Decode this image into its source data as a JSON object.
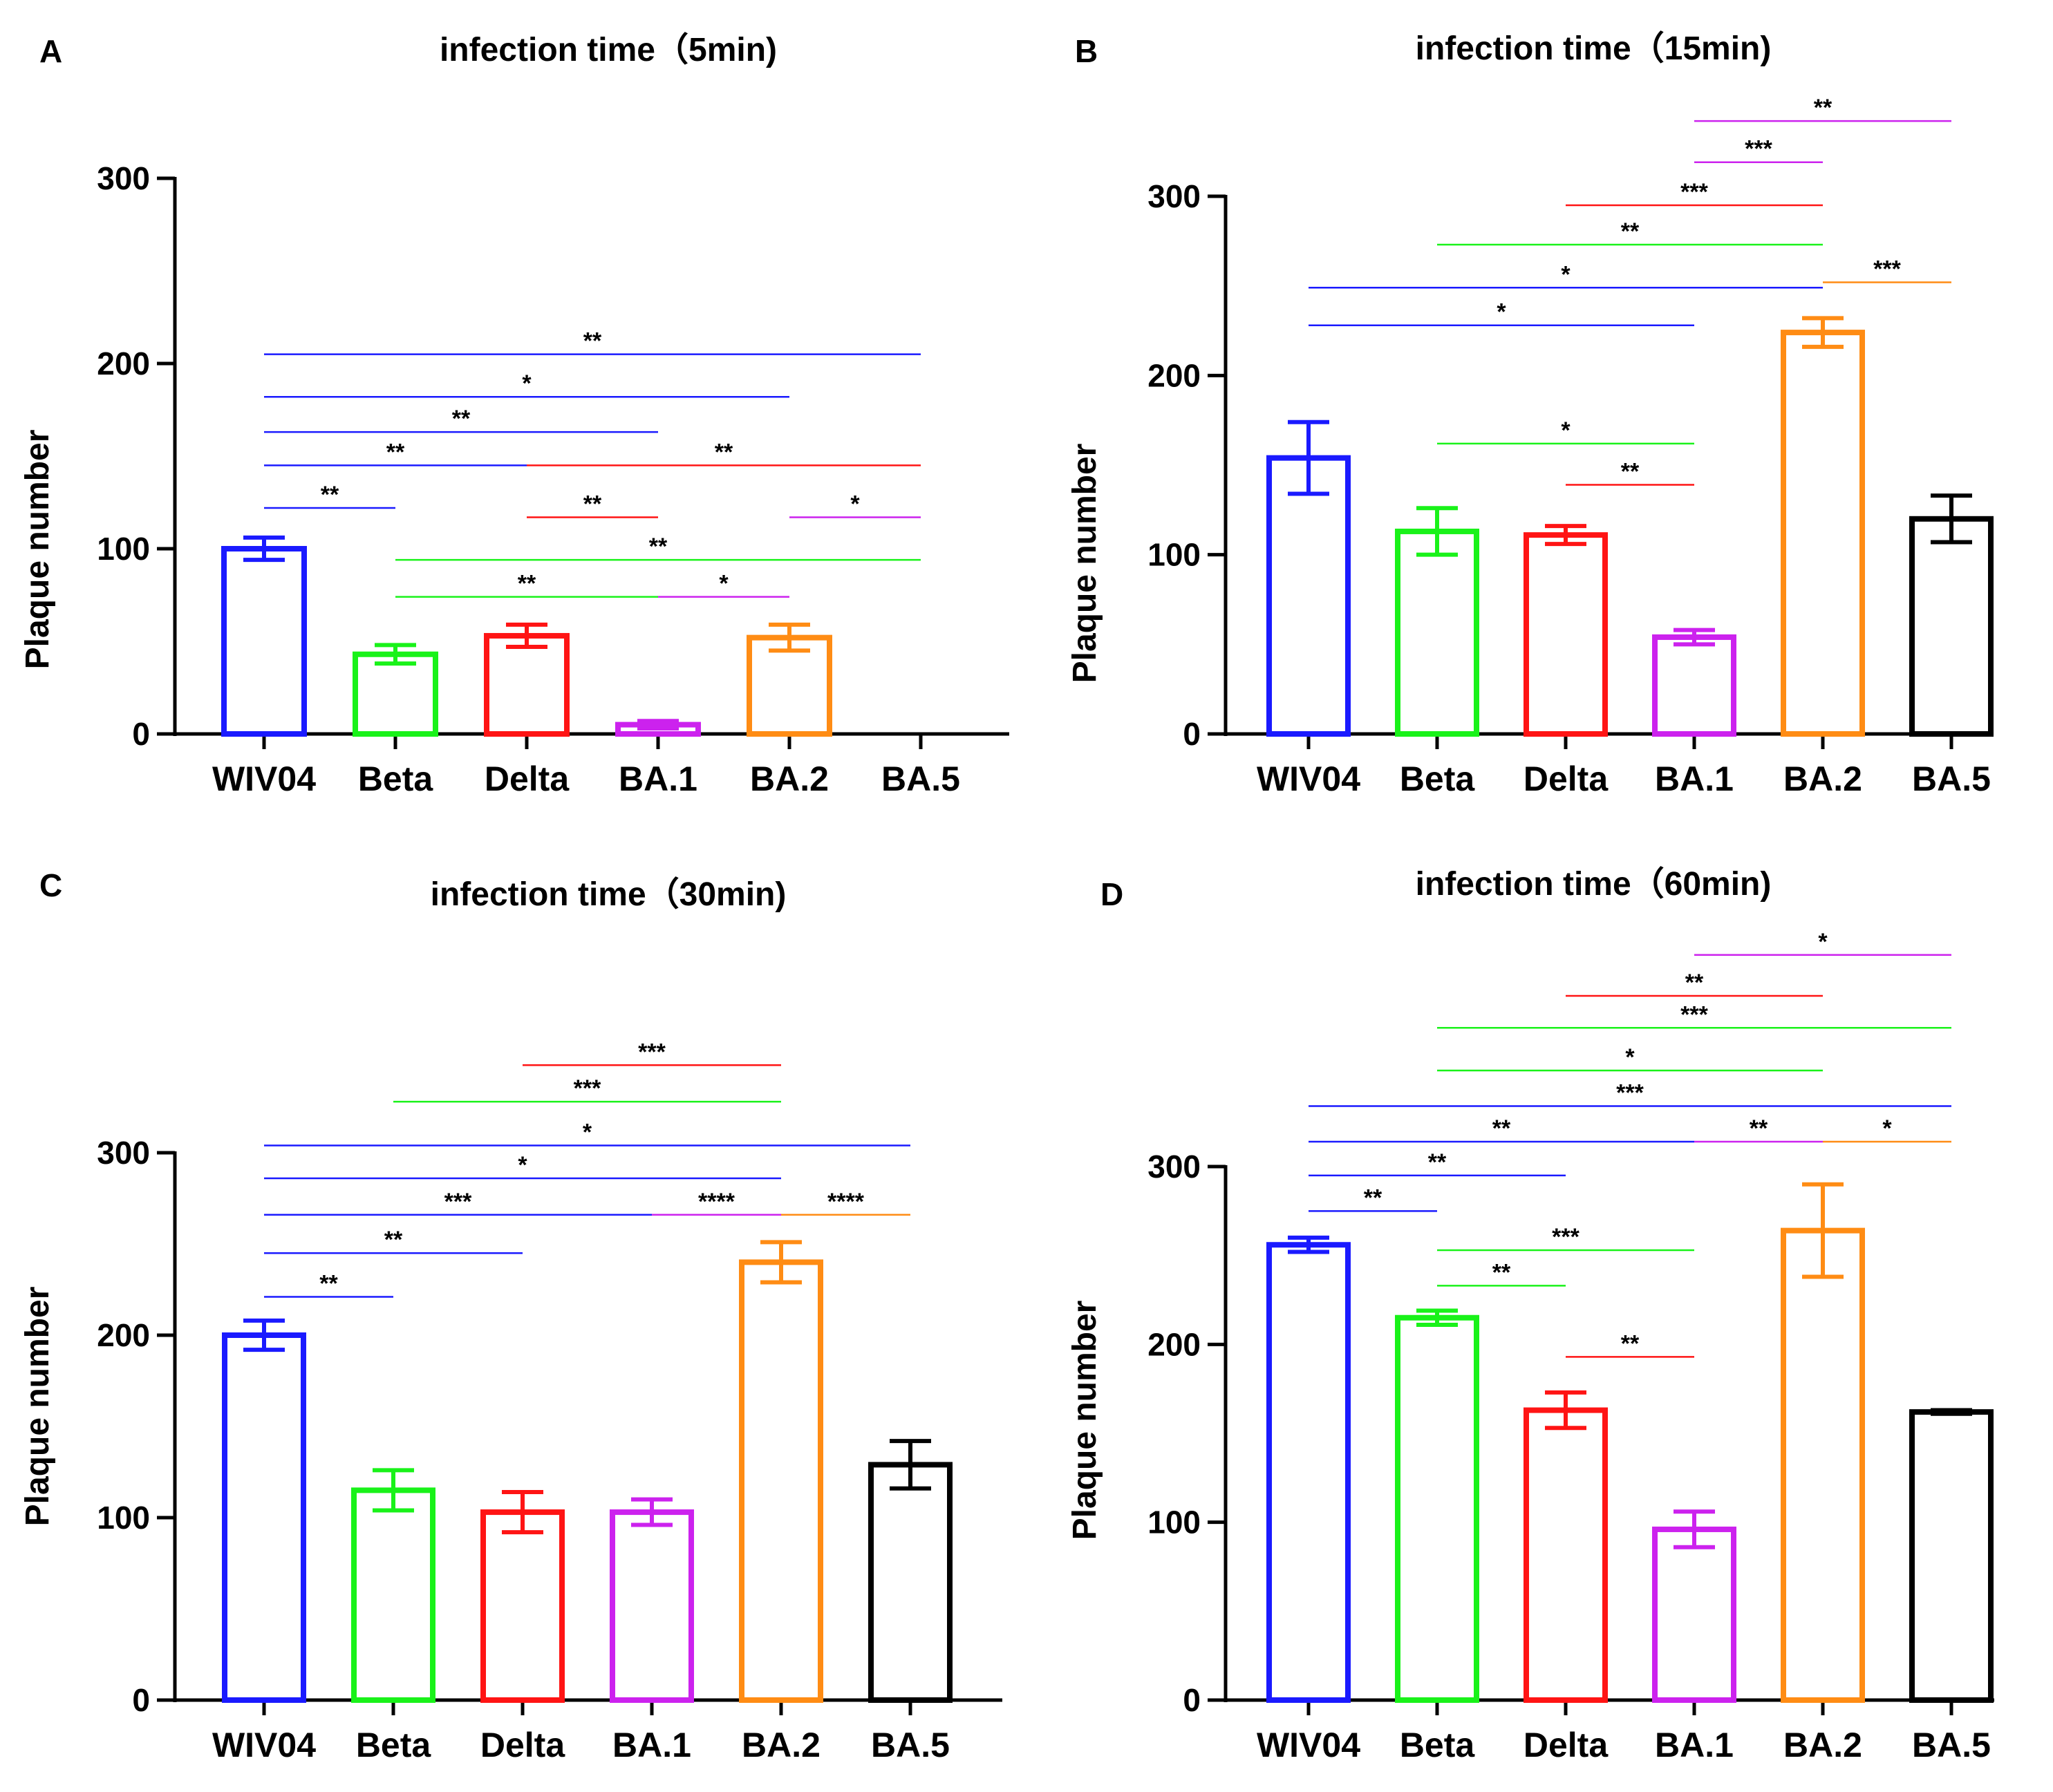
{
  "colors": {
    "WIV04": "#1a1aff",
    "Beta": "#19f219",
    "Delta": "#ff1414",
    "BA.1": "#cc22ee",
    "BA.2": "#ff8c14",
    "BA.5": "#000000"
  },
  "chart_data": [
    {
      "panel": "A",
      "type": "bar",
      "title": "infection time（5min)",
      "ylabel": "Plaque number",
      "xlabel": "",
      "ylim": [
        0,
        300
      ],
      "yticks": [
        "0",
        "100",
        "200",
        "300"
      ],
      "categories": [
        "WIV04",
        "Beta",
        "Delta",
        "BA.1",
        "BA.2",
        "BA.5"
      ],
      "values": [
        100,
        43,
        53,
        5,
        52,
        0
      ],
      "errors": [
        6,
        5,
        6,
        2,
        7,
        0
      ],
      "comparisons": [
        {
          "from": "WIV04",
          "to": "Beta",
          "label": "**",
          "color": "WIV04",
          "level": 122
        },
        {
          "from": "WIV04",
          "to": "Delta",
          "label": "**",
          "color": "WIV04",
          "level": 145
        },
        {
          "from": "WIV04",
          "to": "BA.1",
          "label": "**",
          "color": "WIV04",
          "level": 163
        },
        {
          "from": "WIV04",
          "to": "BA.2",
          "label": "*",
          "color": "WIV04",
          "level": 182
        },
        {
          "from": "WIV04",
          "to": "BA.5",
          "label": "**",
          "color": "WIV04",
          "level": 205
        },
        {
          "from": "Beta",
          "to": "BA.1",
          "label": "**",
          "color": "Beta",
          "level": 74
        },
        {
          "from": "Beta",
          "to": "BA.5",
          "label": "**",
          "color": "Beta",
          "level": 94
        },
        {
          "from": "Delta",
          "to": "BA.1",
          "label": "**",
          "color": "Delta",
          "level": 117
        },
        {
          "from": "Delta",
          "to": "BA.5",
          "label": "**",
          "color": "Delta",
          "level": 145
        },
        {
          "from": "BA.1",
          "to": "BA.2",
          "label": "*",
          "color": "BA.1",
          "level": 74
        },
        {
          "from": "BA.2",
          "to": "BA.5",
          "label": "*",
          "color": "BA.1",
          "level": 117
        }
      ]
    },
    {
      "panel": "B",
      "type": "bar",
      "title": "infection time（15min)",
      "ylabel": "Plaque number",
      "xlabel": "",
      "ylim": [
        0,
        300
      ],
      "yticks": [
        "0",
        "100",
        "200",
        "300"
      ],
      "categories": [
        "WIV04",
        "Beta",
        "Delta",
        "BA.1",
        "BA.2",
        "BA.5"
      ],
      "values": [
        154,
        113,
        111,
        54,
        224,
        120
      ],
      "errors": [
        20,
        13,
        5,
        4,
        8,
        13
      ],
      "comparisons": [
        {
          "from": "WIV04",
          "to": "BA.1",
          "label": "*",
          "color": "WIV04",
          "level": 228
        },
        {
          "from": "WIV04",
          "to": "BA.2",
          "label": "*",
          "color": "WIV04",
          "level": 249
        },
        {
          "from": "Beta",
          "to": "BA.1",
          "label": "*",
          "color": "Beta",
          "level": 162
        },
        {
          "from": "Beta",
          "to": "BA.2",
          "label": "**",
          "color": "Beta",
          "level": 273
        },
        {
          "from": "Delta",
          "to": "BA.1",
          "label": "**",
          "color": "Delta",
          "level": 139
        },
        {
          "from": "Delta",
          "to": "BA.2",
          "label": "***",
          "color": "Delta",
          "level": 295
        },
        {
          "from": "BA.1",
          "to": "BA.2",
          "label": "***",
          "color": "BA.1",
          "level": 319
        },
        {
          "from": "BA.1",
          "to": "BA.5",
          "label": "**",
          "color": "BA.1",
          "level": 342
        },
        {
          "from": "BA.2",
          "to": "BA.5",
          "label": "***",
          "color": "BA.2",
          "level": 252
        }
      ]
    },
    {
      "panel": "C",
      "type": "bar",
      "title": "infection time（30min)",
      "ylabel": "Plaque number",
      "xlabel": "",
      "ylim": [
        0,
        300
      ],
      "yticks": [
        "0",
        "100",
        "200",
        "300"
      ],
      "categories": [
        "WIV04",
        "Beta",
        "Delta",
        "BA.1",
        "BA.2",
        "BA.5"
      ],
      "values": [
        200,
        115,
        103,
        103,
        240,
        129
      ],
      "errors": [
        8,
        11,
        11,
        7,
        11,
        13
      ],
      "comparisons": [
        {
          "from": "WIV04",
          "to": "Beta",
          "label": "**",
          "color": "WIV04",
          "level": 221
        },
        {
          "from": "WIV04",
          "to": "Delta",
          "label": "**",
          "color": "WIV04",
          "level": 245
        },
        {
          "from": "WIV04",
          "to": "BA.1",
          "label": "***",
          "color": "WIV04",
          "level": 266
        },
        {
          "from": "WIV04",
          "to": "BA.2",
          "label": "*",
          "color": "WIV04",
          "level": 286
        },
        {
          "from": "WIV04",
          "to": "BA.5",
          "label": "*",
          "color": "WIV04",
          "level": 304
        },
        {
          "from": "Beta",
          "to": "BA.2",
          "label": "***",
          "color": "Beta",
          "level": 328
        },
        {
          "from": "Delta",
          "to": "BA.2",
          "label": "***",
          "color": "Delta",
          "level": 348
        },
        {
          "from": "BA.1",
          "to": "BA.2",
          "label": "****",
          "color": "BA.1",
          "level": 266
        },
        {
          "from": "BA.2",
          "to": "BA.5",
          "label": "****",
          "color": "BA.2",
          "level": 266
        }
      ]
    },
    {
      "panel": "D",
      "type": "bar",
      "title": "infection time（60min)",
      "ylabel": "Plaque number",
      "xlabel": "",
      "ylim": [
        0,
        300
      ],
      "yticks": [
        "0",
        "100",
        "200",
        "300"
      ],
      "categories": [
        "WIV04",
        "Beta",
        "Delta",
        "BA.1",
        "BA.2",
        "BA.5"
      ],
      "values": [
        256,
        215,
        163,
        96,
        264,
        162
      ],
      "errors": [
        4,
        4,
        10,
        10,
        26,
        1
      ],
      "comparisons": [
        {
          "from": "WIV04",
          "to": "Beta",
          "label": "**",
          "color": "WIV04",
          "level": 275
        },
        {
          "from": "WIV04",
          "to": "Delta",
          "label": "**",
          "color": "WIV04",
          "level": 295
        },
        {
          "from": "WIV04",
          "to": "BA.1",
          "label": "**",
          "color": "WIV04",
          "level": 314
        },
        {
          "from": "WIV04",
          "to": "BA.5",
          "label": "***",
          "color": "WIV04",
          "level": 334
        },
        {
          "from": "Beta",
          "to": "Delta",
          "label": "**",
          "color": "Beta",
          "level": 233
        },
        {
          "from": "Beta",
          "to": "BA.1",
          "label": "***",
          "color": "Beta",
          "level": 253
        },
        {
          "from": "Beta",
          "to": "BA.2",
          "label": "*",
          "color": "Beta",
          "level": 354
        },
        {
          "from": "Beta",
          "to": "BA.5",
          "label": "***",
          "color": "Beta",
          "level": 378
        },
        {
          "from": "Delta",
          "to": "BA.1",
          "label": "**",
          "color": "Delta",
          "level": 193
        },
        {
          "from": "Delta",
          "to": "BA.2",
          "label": "**",
          "color": "Delta",
          "level": 396
        },
        {
          "from": "BA.1",
          "to": "BA.2",
          "label": "**",
          "color": "BA.1",
          "level": 314
        },
        {
          "from": "BA.1",
          "to": "BA.5",
          "label": "*",
          "color": "BA.1",
          "level": 419
        },
        {
          "from": "BA.2",
          "to": "BA.5",
          "label": "*",
          "color": "BA.2",
          "level": 314
        }
      ]
    }
  ]
}
